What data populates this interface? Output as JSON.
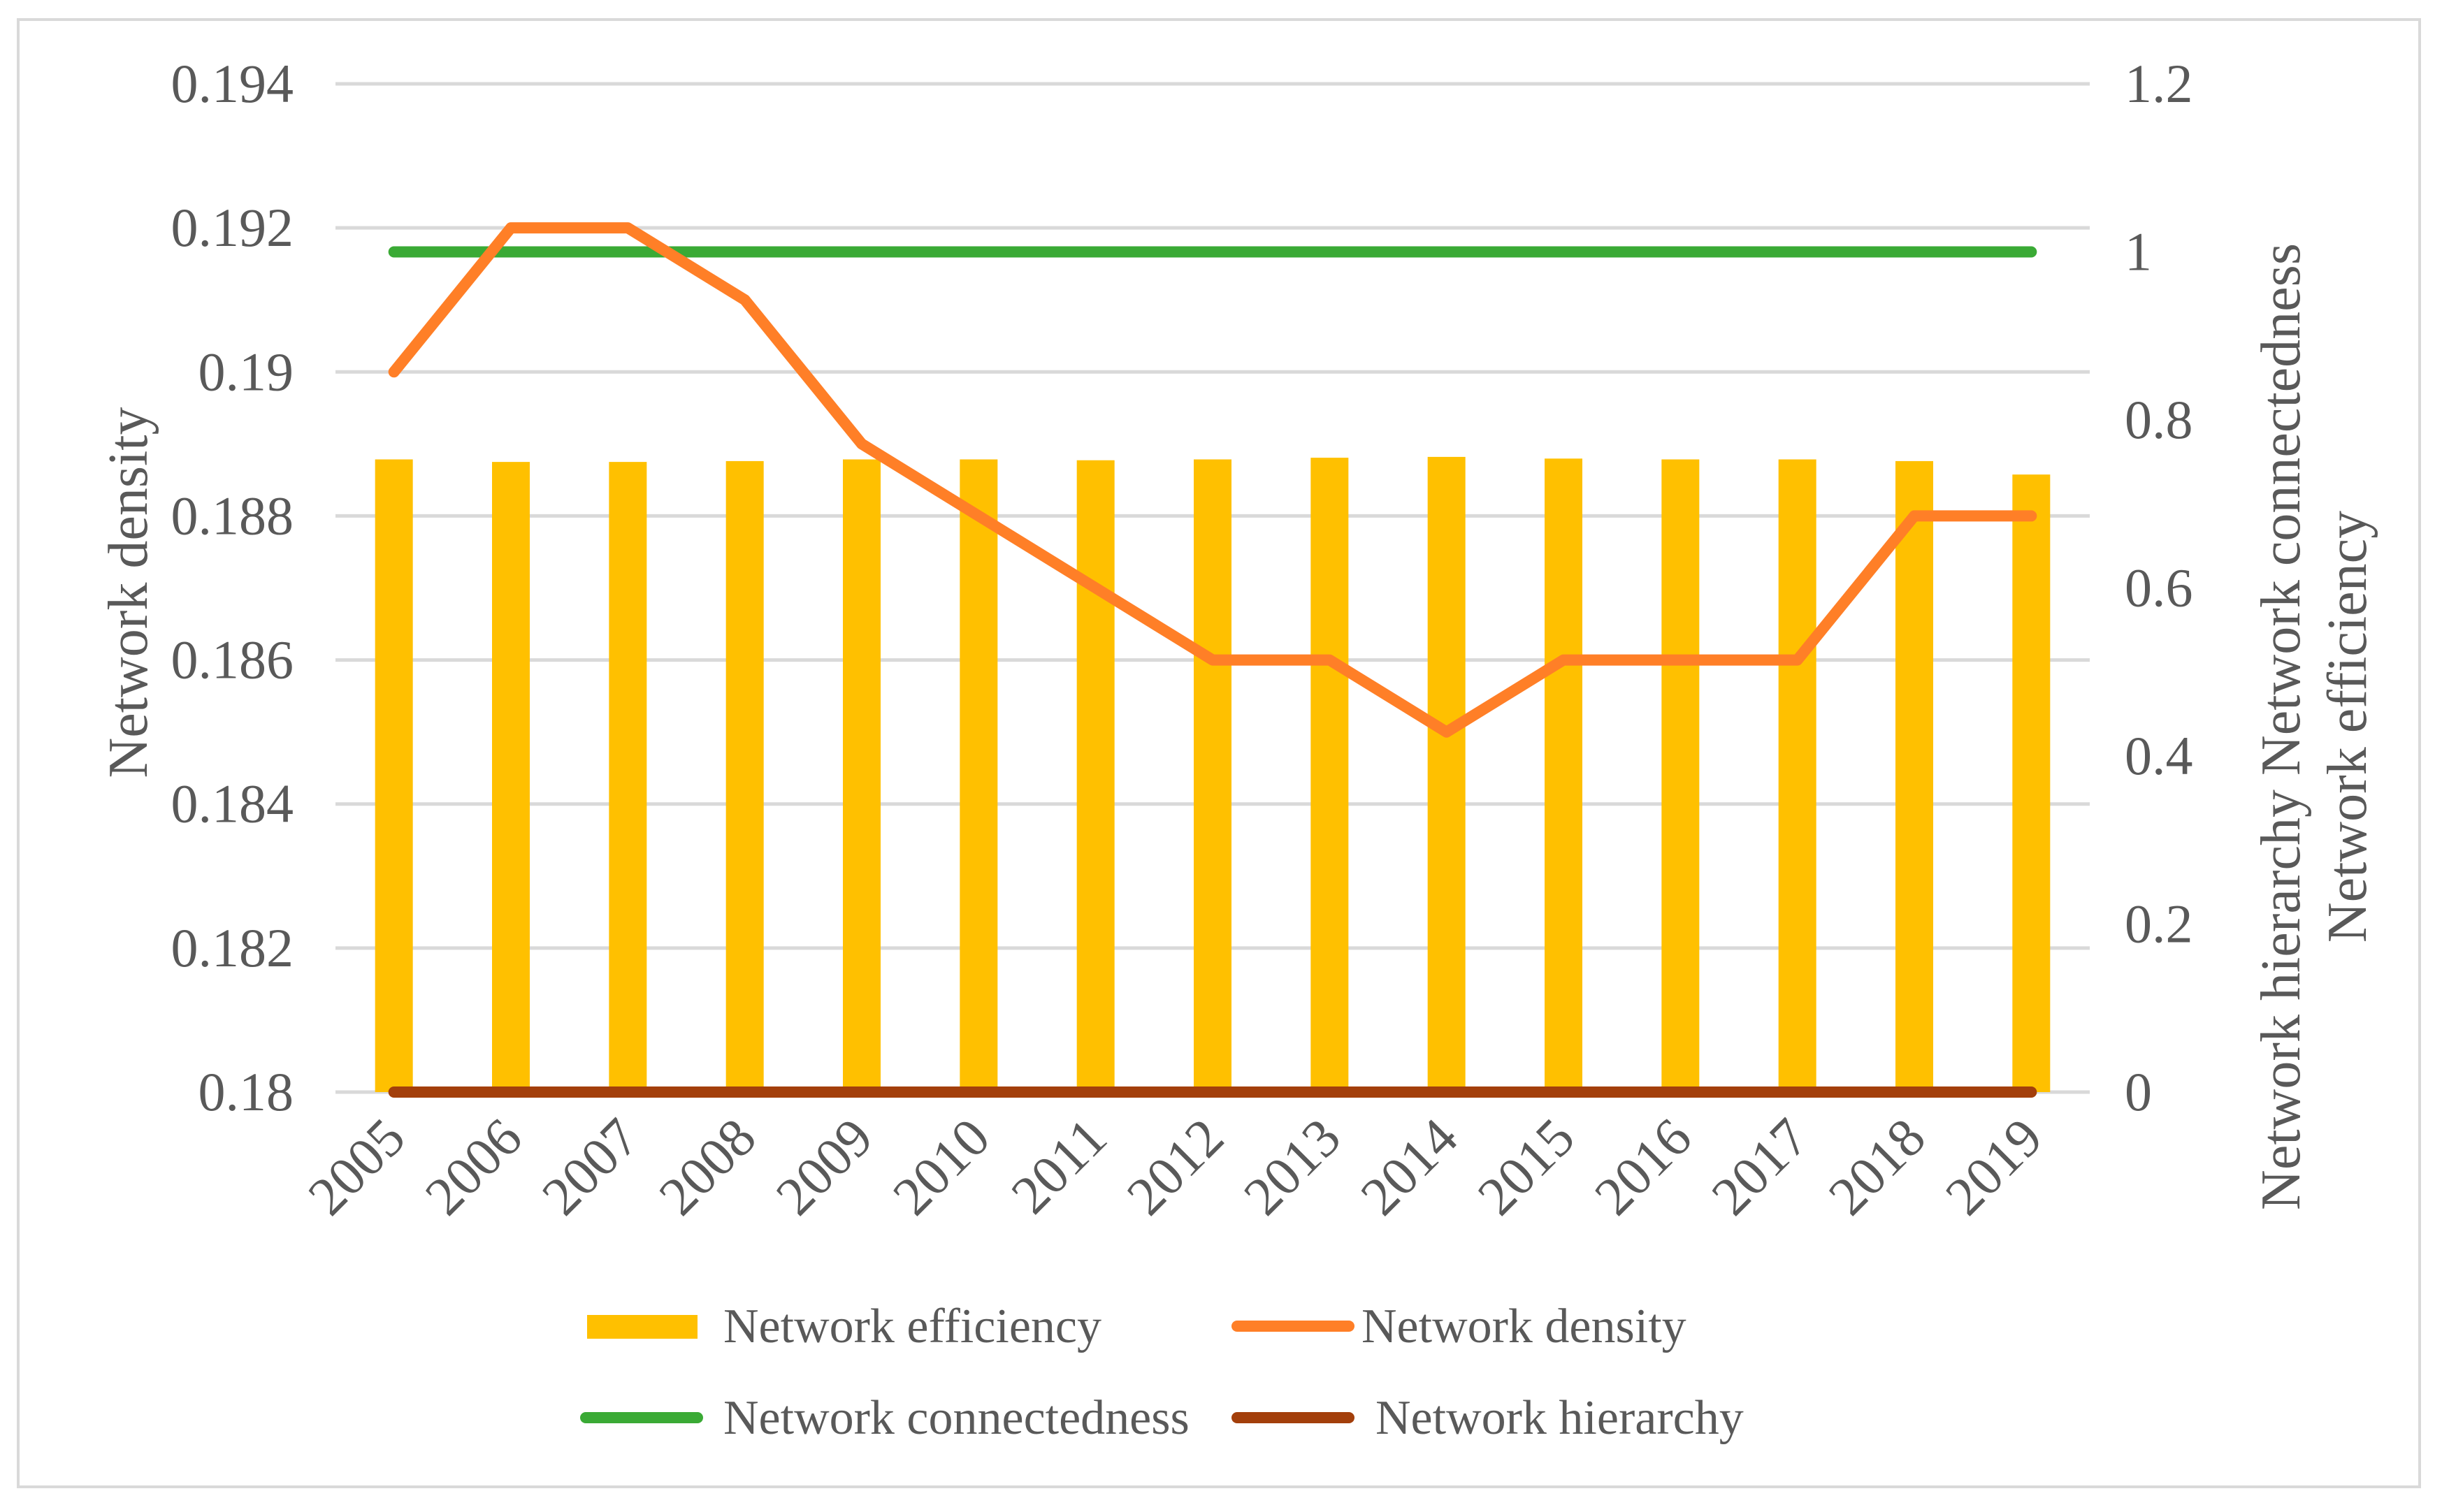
{
  "chart_data": {
    "type": "bar+line",
    "categories": [
      "2005",
      "2006",
      "2007",
      "2008",
      "2009",
      "2010",
      "2011",
      "2012",
      "2013",
      "2014",
      "2015",
      "2016",
      "2017",
      "2018",
      "2019"
    ],
    "series": [
      {
        "name": "Network efficiency",
        "type": "bar",
        "axis": "right",
        "color": "#FFC000",
        "values": [
          0.753,
          0.75,
          0.75,
          0.751,
          0.753,
          0.753,
          0.752,
          0.753,
          0.755,
          0.756,
          0.754,
          0.753,
          0.753,
          0.751,
          0.735
        ]
      },
      {
        "name": "Network density",
        "type": "line",
        "axis": "left",
        "color": "#FF7F27",
        "values": [
          0.19,
          0.192,
          0.192,
          0.191,
          0.189,
          0.188,
          0.187,
          0.186,
          0.186,
          0.185,
          0.186,
          0.186,
          0.186,
          0.188,
          0.188
        ]
      },
      {
        "name": "Network connectedness",
        "type": "line",
        "axis": "right",
        "color": "#3AAA35",
        "values": [
          1,
          1,
          1,
          1,
          1,
          1,
          1,
          1,
          1,
          1,
          1,
          1,
          1,
          1,
          1
        ]
      },
      {
        "name": "Network hierarchy",
        "type": "line",
        "axis": "right",
        "color": "#A33F0B",
        "values": [
          0,
          0,
          0,
          0,
          0,
          0,
          0,
          0,
          0,
          0,
          0,
          0,
          0,
          0,
          0
        ]
      }
    ],
    "left_axis": {
      "title": "Network density",
      "range": [
        0.18,
        0.194
      ],
      "ticks": [
        "0.18",
        "0.182",
        "0.184",
        "0.186",
        "0.188",
        "0.19",
        "0.192",
        "0.194"
      ]
    },
    "right_axis": {
      "title_line1": "Network hierarchy Network connectedness",
      "title_line2": "Network efficiency",
      "range": [
        0,
        1.2
      ],
      "ticks": [
        "0",
        "0.2",
        "0.4",
        "0.6",
        "0.8",
        "1",
        "1.2"
      ]
    },
    "legend": [
      {
        "label": "Network efficiency",
        "kind": "bar",
        "color": "#FFC000"
      },
      {
        "label": "Network density",
        "kind": "line",
        "color": "#FF7F27"
      },
      {
        "label": "Network connectedness",
        "kind": "line",
        "color": "#3AAA35"
      },
      {
        "label": "Network hierarchy",
        "kind": "line",
        "color": "#A33F0B"
      }
    ],
    "legend_position": "bottom",
    "grid": true
  }
}
